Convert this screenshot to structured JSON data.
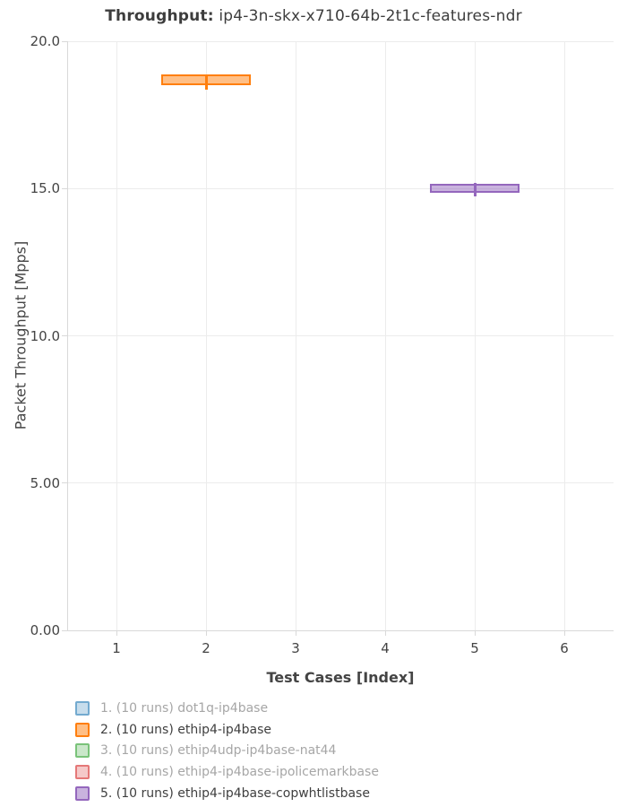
{
  "title": {
    "prefix": "Throughput:",
    "text": " ip4-3n-skx-x710-64b-2t1c-features-ndr"
  },
  "chart_data": {
    "type": "box",
    "title": "Throughput: ip4-3n-skx-x710-64b-2t1c-features-ndr",
    "xlabel": "Test Cases [Index]",
    "ylabel": "Packet Throughput [Mpps]",
    "xlim": [
      0.45,
      6.55
    ],
    "ylim": [
      0,
      20
    ],
    "grid": true,
    "legend_position": "bottom-left",
    "yticks": [
      {
        "value": 0,
        "label": "0.00"
      },
      {
        "value": 5,
        "label": "5.00"
      },
      {
        "value": 10,
        "label": "10.0"
      },
      {
        "value": 15,
        "label": "15.0"
      },
      {
        "value": 20,
        "label": "20.0"
      }
    ],
    "xticks": [
      1,
      2,
      3,
      4,
      5,
      6
    ],
    "series": [
      {
        "index": 1,
        "label": "1. (10 runs) dot1q-ip4base",
        "color": "#1f77b4",
        "visible": false,
        "x": 1,
        "box": null
      },
      {
        "index": 2,
        "label": "2. (10 runs) ethip4-ip4base",
        "color": "#ff7f0e",
        "visible": true,
        "x": 2,
        "box": {
          "min": 18.35,
          "q1": 18.55,
          "median": 18.7,
          "q3": 18.85,
          "max": 18.85
        }
      },
      {
        "index": 3,
        "label": "3. (10 runs) ethip4udp-ip4base-nat44",
        "color": "#2ca02c",
        "visible": false,
        "x": 3,
        "box": null
      },
      {
        "index": 4,
        "label": "4. (10 runs) ethip4-ip4base-ipolicemarkbase",
        "color": "#d62728",
        "visible": false,
        "x": 4,
        "box": null
      },
      {
        "index": 5,
        "label": "5. (10 runs) ethip4-ip4base-copwhtlistbase",
        "color": "#9467bd",
        "visible": true,
        "x": 5,
        "box": {
          "min": 14.72,
          "q1": 14.9,
          "median": 15.02,
          "q3": 15.12,
          "max": 15.2
        }
      }
    ]
  }
}
